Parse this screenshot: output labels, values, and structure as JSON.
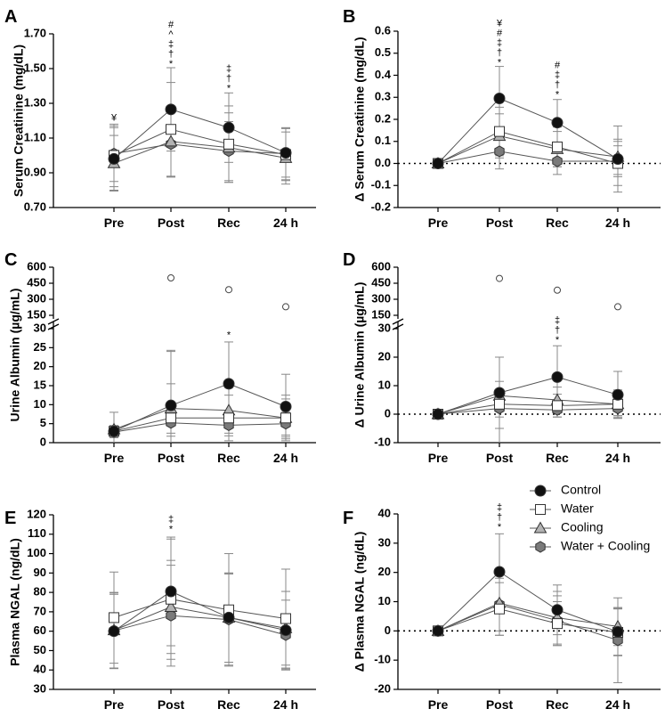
{
  "legend": {
    "series": [
      {
        "name": "Control",
        "marker": "circle",
        "fill": "#111111"
      },
      {
        "name": "Water",
        "marker": "square",
        "fill": "#ffffff"
      },
      {
        "name": "Cooling",
        "marker": "triangle",
        "fill": "#b3b3b3"
      },
      {
        "name": "Water + Cooling",
        "marker": "hexagon",
        "fill": "#7a7a7a"
      }
    ]
  },
  "chart_data": [
    {
      "panel": "A",
      "type": "line",
      "ylabel": "Serum Creatinine (mg/dL)",
      "categories": [
        "Pre",
        "Post",
        "Rec",
        "24 h"
      ],
      "ylim": [
        0.7,
        1.7
      ],
      "yticks": [
        "0.70",
        "0.90",
        "1.10",
        "1.30",
        "1.50",
        "1.70"
      ],
      "ytick_values": [
        0.7,
        0.9,
        1.1,
        1.3,
        1.5,
        1.7
      ],
      "zero_line": false,
      "series": [
        {
          "name": "Control",
          "values": [
            0.98,
            1.265,
            1.16,
            1.015
          ],
          "errors": [
            0.18,
            0.24,
            0.2,
            0.14
          ]
        },
        {
          "name": "Water",
          "values": [
            1.0,
            1.15,
            1.065,
            1.005
          ],
          "errors": [
            0.18,
            0.27,
            0.22,
            0.15
          ]
        },
        {
          "name": "Cooling",
          "values": [
            0.955,
            1.08,
            1.045,
            0.985
          ],
          "errors": [
            0.16,
            0.2,
            0.2,
            0.15
          ]
        },
        {
          "name": "Water + Cooling",
          "values": [
            1.01,
            1.065,
            1.025,
            1.01
          ],
          "errors": [
            0.16,
            0.19,
            0.17,
            0.15
          ]
        }
      ],
      "annotations": [
        {
          "category": "Pre",
          "symbols": [
            "¥"
          ],
          "y": 1.2
        },
        {
          "category": "Post",
          "symbols": [
            "#",
            "^",
            "‡",
            "†",
            "*"
          ],
          "y": 1.51
        },
        {
          "category": "Rec",
          "symbols": [
            "‡",
            "†",
            "*"
          ],
          "y": 1.37
        }
      ]
    },
    {
      "panel": "B",
      "type": "line",
      "ylabel": "Δ Serum Creatinine (mg/dL)",
      "categories": [
        "Pre",
        "Post",
        "Rec",
        "24 h"
      ],
      "ylim": [
        -0.2,
        0.6
      ],
      "yticks": [
        "-0.2",
        "-0.1",
        "0.0",
        "0.1",
        "0.2",
        "0.3",
        "0.4",
        "0.5",
        "0.6"
      ],
      "ytick_values": [
        -0.2,
        -0.1,
        0.0,
        0.1,
        0.2,
        0.3,
        0.4,
        0.5,
        0.6
      ],
      "zero_line": true,
      "series": [
        {
          "name": "Control",
          "values": [
            0.0,
            0.295,
            0.185,
            0.02
          ],
          "errors": [
            0.0,
            0.145,
            0.105,
            0.15
          ]
        },
        {
          "name": "Water",
          "values": [
            0.0,
            0.145,
            0.075,
            0.0
          ],
          "errors": [
            0.0,
            0.11,
            0.09,
            0.1
          ]
        },
        {
          "name": "Cooling",
          "values": [
            0.0,
            0.125,
            0.065,
            0.03
          ],
          "errors": [
            0.0,
            0.1,
            0.08,
            0.08
          ]
        },
        {
          "name": "Water + Cooling",
          "values": [
            0.0,
            0.055,
            0.01,
            0.01
          ],
          "errors": [
            0.0,
            0.08,
            0.06,
            0.07
          ]
        }
      ],
      "annotations": [
        {
          "category": "Post",
          "symbols": [
            "¥",
            "#",
            "‡",
            "†",
            "*"
          ],
          "y": 0.445
        },
        {
          "category": "Rec",
          "symbols": [
            "#",
            "‡",
            "†",
            "*"
          ],
          "y": 0.3
        }
      ]
    },
    {
      "panel": "C",
      "type": "line",
      "ylabel": "Urine Albumin (µg/mL)",
      "categories": [
        "Pre",
        "Post",
        "Rec",
        "24 h"
      ],
      "ylim": [
        0,
        30
      ],
      "yticks": [
        "0",
        "5",
        "10",
        "15",
        "20",
        "25",
        "30"
      ],
      "ytick_values": [
        0,
        5,
        10,
        15,
        20,
        25,
        30
      ],
      "upper_axis": {
        "ylim": [
          150,
          600
        ],
        "yticks": [
          "150",
          "300",
          "450",
          "600"
        ],
        "ytick_values": [
          150,
          300,
          450,
          600
        ]
      },
      "zero_line": false,
      "series": [
        {
          "name": "Control",
          "values": [
            3.0,
            9.8,
            15.5,
            9.5
          ],
          "errors": [
            1.5,
            14.5,
            11.0,
            8.5
          ]
        },
        {
          "name": "Water",
          "values": [
            3.0,
            6.5,
            6.5,
            6.5
          ],
          "errors": [
            1.5,
            17.5,
            6.0,
            6.0
          ]
        },
        {
          "name": "Cooling",
          "values": [
            3.5,
            9.0,
            8.5,
            6.5
          ],
          "errors": [
            4.5,
            6.5,
            6.0,
            5.0
          ]
        },
        {
          "name": "Water + Cooling",
          "values": [
            2.8,
            5.2,
            4.6,
            5.0
          ],
          "errors": [
            1.5,
            3.5,
            2.8,
            3.0
          ]
        }
      ],
      "outliers": [
        {
          "category": "Post",
          "value": 500
        },
        {
          "category": "Rec",
          "value": 390
        },
        {
          "category": "24 h",
          "value": 230
        }
      ],
      "annotations": [
        {
          "category": "Rec",
          "symbols": [
            "*"
          ],
          "y": 27.5
        }
      ]
    },
    {
      "panel": "D",
      "type": "line",
      "ylabel": "Δ Urine Albumin (µg/mL)",
      "categories": [
        "Pre",
        "Post",
        "Rec",
        "24 h"
      ],
      "ylim": [
        -10,
        30
      ],
      "yticks": [
        "-10",
        "0",
        "10",
        "20",
        "30"
      ],
      "ytick_values": [
        -10,
        0,
        10,
        20,
        30
      ],
      "upper_axis": {
        "ylim": [
          150,
          600
        ],
        "yticks": [
          "150",
          "300",
          "450",
          "600"
        ],
        "ytick_values": [
          150,
          300,
          450,
          600
        ]
      },
      "zero_line": true,
      "series": [
        {
          "name": "Control",
          "values": [
            0.0,
            7.5,
            13.0,
            6.8
          ],
          "errors": [
            0.0,
            12.5,
            11.0,
            8.2
          ]
        },
        {
          "name": "Water",
          "values": [
            0.0,
            3.5,
            3.0,
            3.5
          ],
          "errors": [
            0.0,
            16.5,
            4.0,
            5.0
          ]
        },
        {
          "name": "Cooling",
          "values": [
            0.0,
            6.5,
            5.0,
            3.5
          ],
          "errors": [
            0.0,
            5.0,
            4.5,
            4.0
          ]
        },
        {
          "name": "Water + Cooling",
          "values": [
            0.0,
            2.0,
            1.5,
            2.0
          ],
          "errors": [
            0.0,
            3.0,
            2.5,
            3.0
          ]
        }
      ],
      "outliers": [
        {
          "category": "Post",
          "value": 495
        },
        {
          "category": "Rec",
          "value": 385
        },
        {
          "category": "24 h",
          "value": 230
        }
      ],
      "annotations": [
        {
          "category": "Rec",
          "symbols": [
            "‡",
            "†",
            "*"
          ],
          "y": 25
        }
      ]
    },
    {
      "panel": "E",
      "type": "line",
      "ylabel": "Plasma NGAL (ng/dL)",
      "categories": [
        "Pre",
        "Post",
        "Rec",
        "24 h"
      ],
      "ylim": [
        30,
        120
      ],
      "yticks": [
        "30",
        "40",
        "50",
        "60",
        "70",
        "80",
        "90",
        "100",
        "110",
        "120"
      ],
      "ytick_values": [
        30,
        40,
        50,
        60,
        70,
        80,
        90,
        100,
        110,
        120
      ],
      "zero_line": false,
      "series": [
        {
          "name": "Control",
          "values": [
            60.0,
            80.5,
            67.0,
            60.5
          ],
          "errors": [
            19.0,
            28.0,
            23.0,
            20.0
          ]
        },
        {
          "name": "Water",
          "values": [
            67.0,
            76.5,
            71.0,
            66.5
          ],
          "errors": [
            23.5,
            31.0,
            29.0,
            25.5
          ]
        },
        {
          "name": "Cooling",
          "values": [
            60.5,
            72.5,
            67.0,
            61.5
          ],
          "errors": [
            19.5,
            24.0,
            23.0,
            19.0
          ]
        },
        {
          "name": "Water + Cooling",
          "values": [
            60.2,
            68.0,
            66.0,
            58.0
          ],
          "errors": [
            19.5,
            26.0,
            23.5,
            18.0
          ]
        }
      ],
      "annotations": [
        {
          "category": "Post",
          "symbols": [
            "‡",
            "*"
          ],
          "y": 111
        }
      ]
    },
    {
      "panel": "F",
      "type": "line",
      "ylabel": "Δ Plasma NGAL (ng/dL)",
      "categories": [
        "Pre",
        "Post",
        "Rec",
        "24 h"
      ],
      "ylim": [
        -20,
        40
      ],
      "yticks": [
        "-20",
        "-10",
        "0",
        "10",
        "20",
        "30",
        "40"
      ],
      "ytick_values": [
        -20,
        -10,
        0,
        10,
        20,
        30,
        40
      ],
      "zero_line": true,
      "series": [
        {
          "name": "Control",
          "values": [
            0.0,
            20.2,
            7.2,
            -0.3
          ],
          "errors": [
            0.0,
            13.0,
            8.5,
            8.0
          ]
        },
        {
          "name": "Water",
          "values": [
            0.0,
            7.5,
            2.5,
            -0.5
          ],
          "errors": [
            0.0,
            9.0,
            7.5,
            8.0
          ]
        },
        {
          "name": "Cooling",
          "values": [
            0.0,
            9.5,
            4.5,
            1.5
          ],
          "errors": [
            0.0,
            11.0,
            9.0,
            6.5
          ]
        },
        {
          "name": "Water + Cooling",
          "values": [
            0.0,
            9.0,
            3.5,
            -3.2
          ],
          "errors": [
            0.0,
            9.0,
            8.5,
            14.5
          ]
        }
      ],
      "annotations": [
        {
          "category": "Post",
          "symbols": [
            "‡",
            "†",
            "*"
          ],
          "y": 34.5
        }
      ]
    }
  ]
}
